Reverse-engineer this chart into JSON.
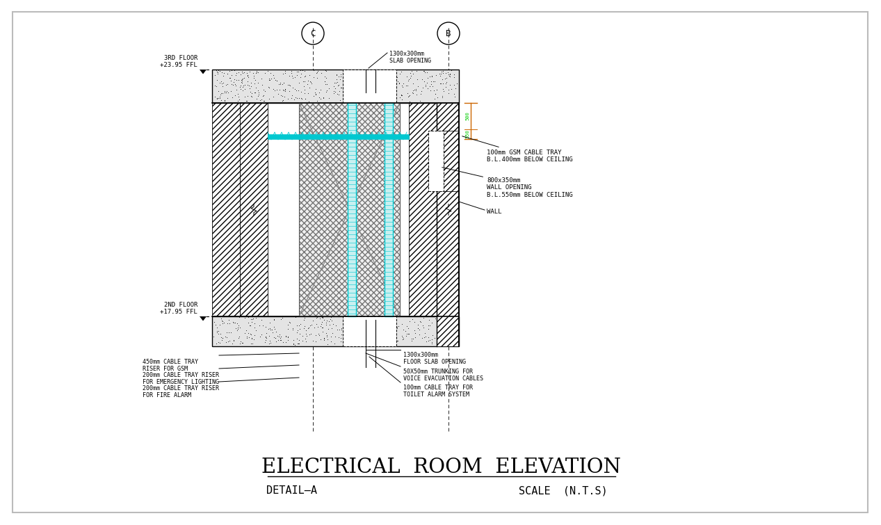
{
  "bg_color": "#ffffff",
  "line_color": "#000000",
  "cyan_color": "#00c8d0",
  "green_color": "#00cc00",
  "orange_color": "#cc6600",
  "gray_color": "#888888",
  "title": "ELECTRICAL  ROOM  ELEVATION",
  "detail": "DETAIL–A",
  "scale": "SCALE  (N.T.S)",
  "floor3_label": "3RD FLOOR\n+23.95 FFL",
  "floor2_label": "2ND FLOOR\n+17.95 FFL",
  "col_c_label": "C",
  "col_b_label": "B",
  "ann_gsm_cable": "100mm GSM CABLE TRAY\nB.L.400mm BELOW CEILING",
  "ann_wall_opening": "800x350mm\nWALL OPENING\nB.L.550mm BELOW CEILING",
  "ann_wall": "WALL",
  "ann_left1": "450mm CABLE TRAY\nRISER FOR GSM",
  "ann_left2": "200mm CABLE TRAY RISER\nFOR EMERGENCY LIGHTING",
  "ann_left3": "200mm CABLE TRAY RISER\nFOR FIRE ALARM",
  "ann_floor_opening": "1300x300mm\nFLOOR SLAB OPENING",
  "ann_trunking": "50X50mm TRUNKING FOR\nVOICE EVACUATION CABLES",
  "ann_cable_tray_alarm": "100mm CABLE TRAY FOR\nTOILET ALARM SYSTEM",
  "ann_slab_opening": "1300x300mm\nSLAB OPENING"
}
